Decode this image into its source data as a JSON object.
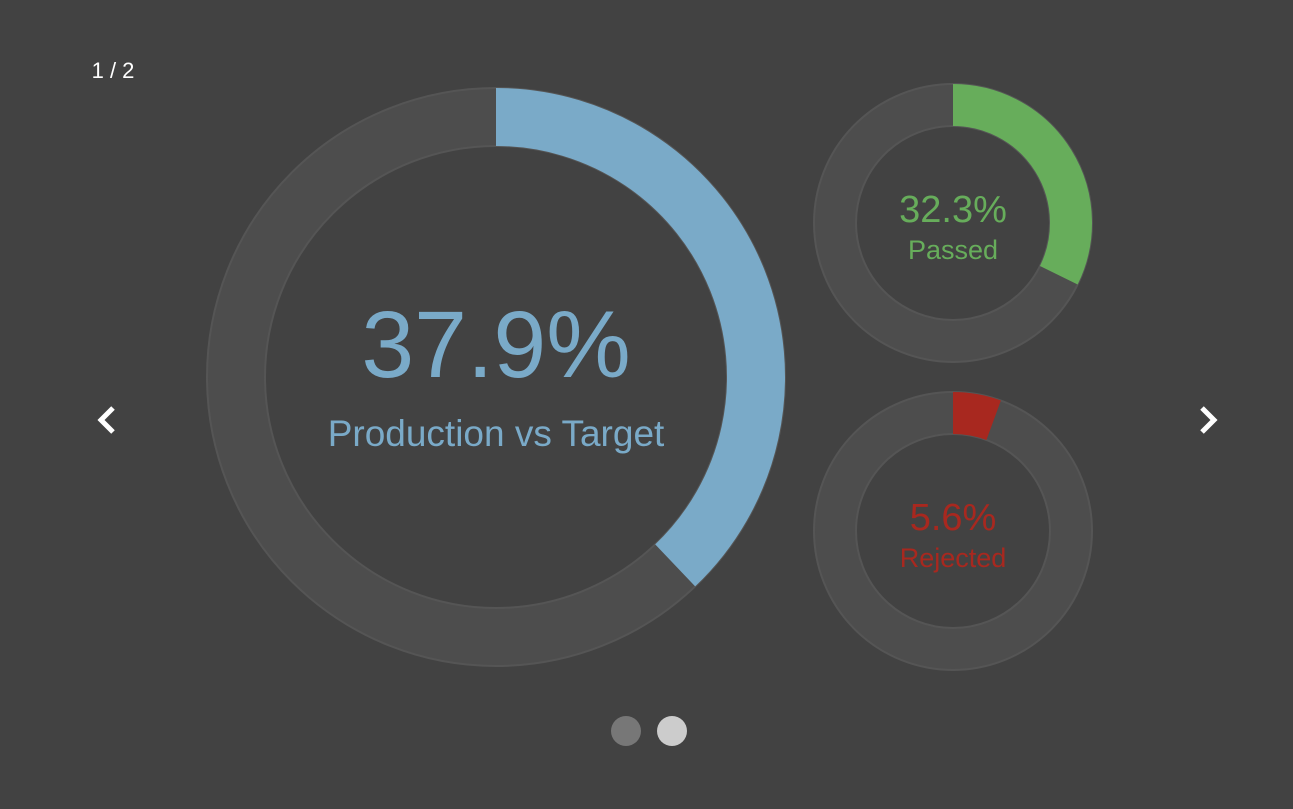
{
  "slide_counter": "1 / 2",
  "chart_data": [
    {
      "type": "gauge",
      "title": "Production vs Target",
      "values": [
        37.9
      ],
      "value_labels": [
        "37.9%"
      ],
      "color": "#7aaac8",
      "ylim": [
        0,
        100
      ]
    },
    {
      "type": "gauge",
      "title": "Passed",
      "values": [
        32.3
      ],
      "value_labels": [
        "32.3%"
      ],
      "color": "#67ad5b",
      "ylim": [
        0,
        100
      ]
    },
    {
      "type": "gauge",
      "title": "Rejected",
      "values": [
        5.6
      ],
      "value_labels": [
        "5.6%"
      ],
      "color": "#a8281f",
      "ylim": [
        0,
        100
      ]
    }
  ]
}
